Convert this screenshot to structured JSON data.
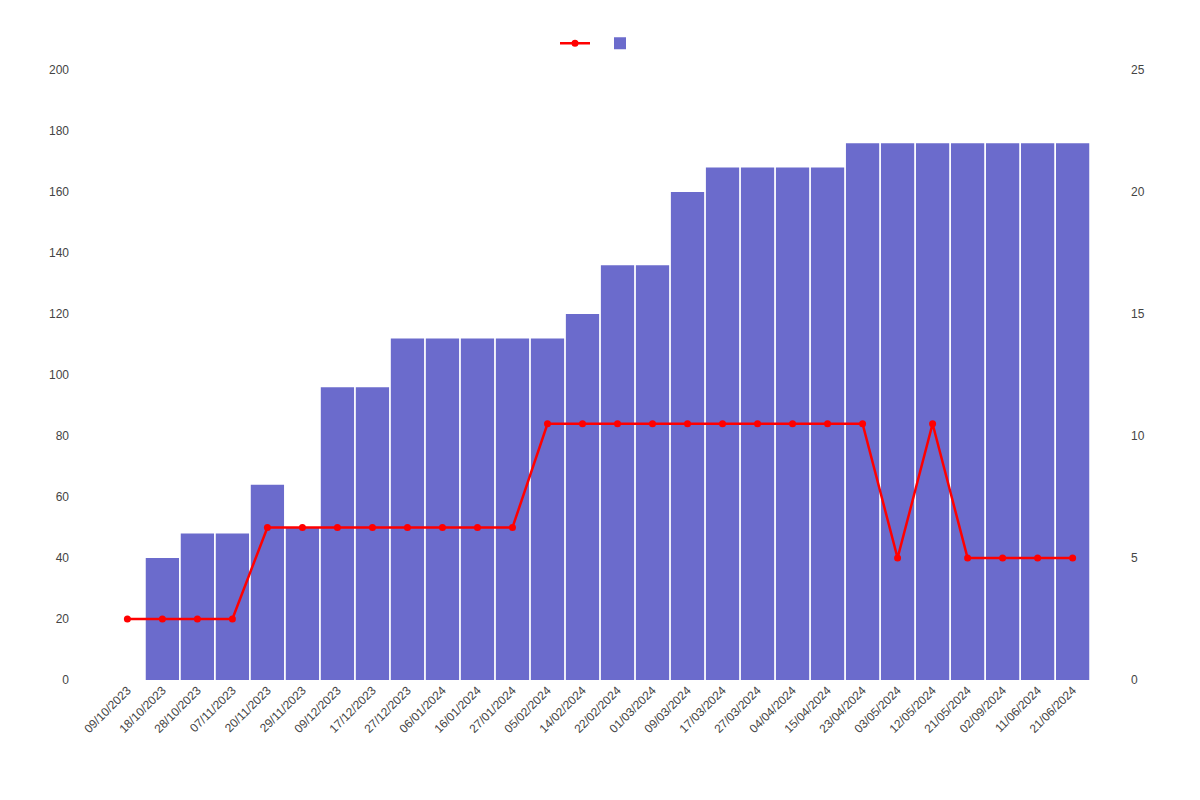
{
  "chart_data": {
    "type": "bar",
    "categories": [
      "09/10/2023",
      "18/10/2023",
      "28/10/2023",
      "07/11/2023",
      "20/11/2023",
      "29/11/2023",
      "09/12/2023",
      "17/12/2023",
      "27/12/2023",
      "06/01/2024",
      "16/01/2024",
      "27/01/2024",
      "05/02/2024",
      "14/02/2024",
      "22/02/2024",
      "01/03/2024",
      "09/03/2024",
      "17/03/2024",
      "27/03/2024",
      "04/04/2024",
      "15/04/2024",
      "23/04/2024",
      "03/05/2024",
      "12/05/2024",
      "21/05/2024",
      "02/09/2024",
      "11/06/2024",
      "21/06/2024"
    ],
    "series": [
      {
        "type": "bar",
        "color": "#6b6bcc",
        "values": [
          0,
          40,
          48,
          48,
          64,
          50,
          96,
          96,
          112,
          112,
          112,
          112,
          112,
          120,
          136,
          136,
          160,
          168,
          168,
          168,
          168,
          176,
          176,
          176,
          176,
          176,
          176,
          176
        ]
      },
      {
        "type": "line",
        "color": "#ff0000",
        "marker": "o",
        "axis": "y2",
        "values": [
          2.5,
          2.5,
          2.5,
          2.5,
          6.25,
          6.25,
          6.25,
          6.25,
          6.25,
          6.25,
          6.25,
          6.25,
          10.5,
          10.5,
          10.5,
          10.5,
          10.5,
          10.5,
          10.5,
          10.5,
          10.5,
          10.5,
          5.0,
          10.5,
          5.0,
          5.0,
          5.0,
          5.0
        ]
      }
    ],
    "ylim": [
      0,
      200
    ],
    "yticks": [
      0,
      20,
      40,
      60,
      80,
      100,
      120,
      140,
      160,
      180,
      200
    ],
    "y2lim": [
      0,
      25
    ],
    "y2ticks": [
      0,
      5,
      10,
      15,
      20,
      25
    ],
    "grid": false,
    "legend": "top"
  }
}
